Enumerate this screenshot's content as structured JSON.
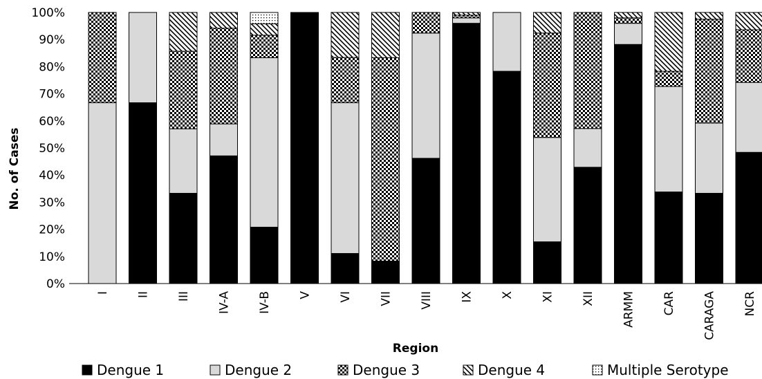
{
  "chart_data": {
    "type": "bar",
    "stacked": true,
    "percent": true,
    "title": "",
    "xlabel": "Region",
    "ylabel": "No. of Cases",
    "ylim": [
      0,
      100
    ],
    "yticks": [
      "0%",
      "10%",
      "20%",
      "30%",
      "40%",
      "50%",
      "60%",
      "70%",
      "80%",
      "90%",
      "100%"
    ],
    "grid": false,
    "legend_position": "bottom",
    "categories": [
      "I",
      "II",
      "III",
      "IV-A",
      "IV-B",
      "V",
      "VI",
      "VII",
      "VIII",
      "IX",
      "X",
      "XI",
      "XII",
      "ARMM",
      "CAR",
      "CARAGA",
      "NCR"
    ],
    "series": [
      {
        "name": "Dengue 1",
        "pattern": "solid-black",
        "values": [
          0,
          66.7,
          33.3,
          47.1,
          20.8,
          100,
          11.1,
          8.3,
          46.2,
          96.0,
          78.3,
          15.4,
          42.9,
          88.2,
          33.8,
          33.3,
          48.4
        ]
      },
      {
        "name": "Dengue 2",
        "pattern": "solid-gray",
        "values": [
          66.7,
          33.3,
          23.8,
          11.8,
          62.5,
          0,
          55.6,
          0,
          46.2,
          2.0,
          21.7,
          38.5,
          14.3,
          7.8,
          38.9,
          25.9,
          25.8
        ]
      },
      {
        "name": "Dengue 3",
        "pattern": "checker",
        "values": [
          33.3,
          0,
          28.6,
          35.3,
          8.3,
          0,
          16.7,
          75.0,
          7.6,
          1.0,
          0,
          38.5,
          42.8,
          2.0,
          5.6,
          38.3,
          19.4
        ]
      },
      {
        "name": "Dengue 4",
        "pattern": "diagonal",
        "values": [
          0,
          0,
          14.3,
          5.8,
          4.2,
          0,
          16.6,
          16.7,
          0,
          1.0,
          0,
          7.6,
          0,
          2.0,
          21.7,
          2.5,
          6.4
        ]
      },
      {
        "name": "Multiple Serotype",
        "pattern": "dots",
        "values": [
          0,
          0,
          0,
          0,
          4.2,
          0,
          0,
          0,
          0,
          0,
          0,
          0,
          0,
          0,
          0,
          0,
          0
        ]
      }
    ],
    "colors": {
      "dengue1": "#000000",
      "dengue2": "#d9d9d9",
      "outline": "#000000"
    }
  }
}
